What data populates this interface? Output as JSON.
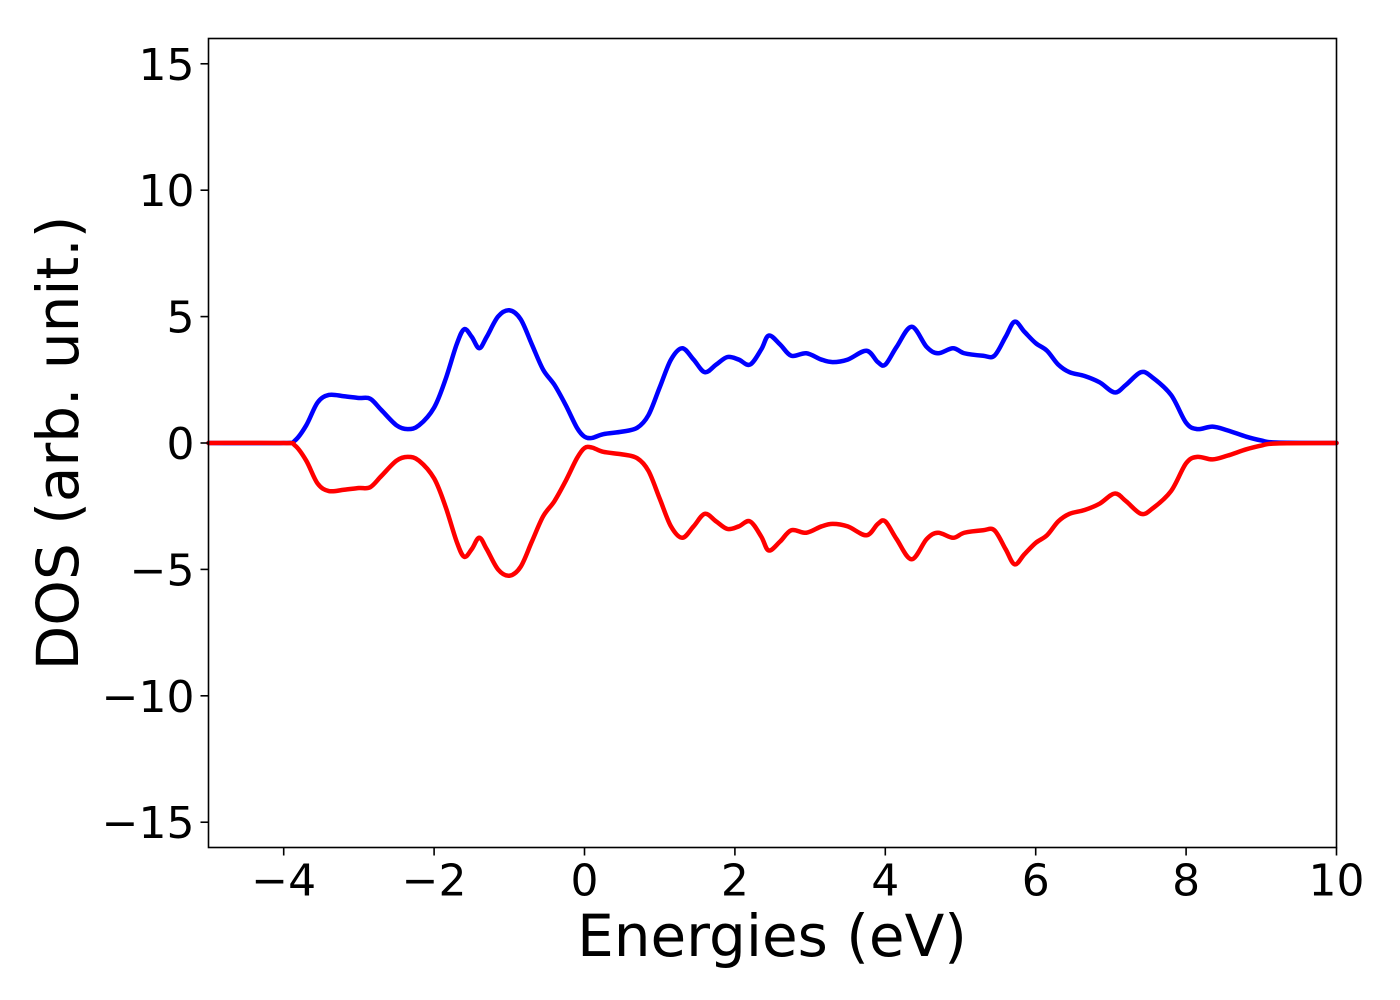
{
  "chart_data": {
    "type": "line",
    "title": "",
    "xlabel": "Energies (eV)",
    "ylabel": "DOS (arb. unit.)",
    "xlim": [
      -5,
      10
    ],
    "ylim": [
      -16,
      16
    ],
    "grid": false,
    "legend": "none",
    "xticks": [
      -4,
      -2,
      0,
      2,
      4,
      6,
      8,
      10
    ],
    "xtick_labels": [
      "−4",
      "−2",
      "0",
      "2",
      "4",
      "6",
      "8",
      "10"
    ],
    "yticks": [
      -15,
      -10,
      -5,
      0,
      5,
      10,
      15
    ],
    "ytick_labels": [
      "−15",
      "−10",
      "−5",
      "0",
      "5",
      "10",
      "15"
    ],
    "series": [
      {
        "color": "#0000ff",
        "points": [
          [
            -5,
            0
          ],
          [
            -4.0,
            0
          ],
          [
            -3.85,
            0.1
          ],
          [
            -3.7,
            0.7
          ],
          [
            -3.55,
            1.6
          ],
          [
            -3.4,
            1.9
          ],
          [
            -3.2,
            1.85
          ],
          [
            -3.0,
            1.78
          ],
          [
            -2.85,
            1.75
          ],
          [
            -2.7,
            1.3
          ],
          [
            -2.5,
            0.7
          ],
          [
            -2.35,
            0.55
          ],
          [
            -2.2,
            0.7
          ],
          [
            -2.0,
            1.4
          ],
          [
            -1.85,
            2.5
          ],
          [
            -1.7,
            3.9
          ],
          [
            -1.6,
            4.5
          ],
          [
            -1.5,
            4.2
          ],
          [
            -1.4,
            3.75
          ],
          [
            -1.3,
            4.2
          ],
          [
            -1.15,
            5.0
          ],
          [
            -1.0,
            5.25
          ],
          [
            -0.85,
            4.9
          ],
          [
            -0.7,
            3.9
          ],
          [
            -0.55,
            2.9
          ],
          [
            -0.4,
            2.3
          ],
          [
            -0.25,
            1.5
          ],
          [
            -0.1,
            0.6
          ],
          [
            0.0,
            0.25
          ],
          [
            0.1,
            0.2
          ],
          [
            0.25,
            0.35
          ],
          [
            0.5,
            0.45
          ],
          [
            0.7,
            0.6
          ],
          [
            0.85,
            1.1
          ],
          [
            1.0,
            2.2
          ],
          [
            1.15,
            3.3
          ],
          [
            1.3,
            3.75
          ],
          [
            1.45,
            3.3
          ],
          [
            1.6,
            2.8
          ],
          [
            1.75,
            3.1
          ],
          [
            1.9,
            3.4
          ],
          [
            2.05,
            3.3
          ],
          [
            2.2,
            3.1
          ],
          [
            2.35,
            3.7
          ],
          [
            2.45,
            4.25
          ],
          [
            2.6,
            3.9
          ],
          [
            2.75,
            3.45
          ],
          [
            2.95,
            3.55
          ],
          [
            3.15,
            3.3
          ],
          [
            3.3,
            3.2
          ],
          [
            3.5,
            3.3
          ],
          [
            3.75,
            3.65
          ],
          [
            3.9,
            3.2
          ],
          [
            4.0,
            3.1
          ],
          [
            4.15,
            3.8
          ],
          [
            4.35,
            4.6
          ],
          [
            4.55,
            3.8
          ],
          [
            4.7,
            3.55
          ],
          [
            4.9,
            3.75
          ],
          [
            5.05,
            3.55
          ],
          [
            5.3,
            3.45
          ],
          [
            5.45,
            3.45
          ],
          [
            5.6,
            4.2
          ],
          [
            5.72,
            4.8
          ],
          [
            5.85,
            4.4
          ],
          [
            6.0,
            3.95
          ],
          [
            6.15,
            3.65
          ],
          [
            6.3,
            3.1
          ],
          [
            6.45,
            2.8
          ],
          [
            6.65,
            2.65
          ],
          [
            6.85,
            2.4
          ],
          [
            7.05,
            2.0
          ],
          [
            7.2,
            2.3
          ],
          [
            7.4,
            2.8
          ],
          [
            7.55,
            2.6
          ],
          [
            7.8,
            1.9
          ],
          [
            8.0,
            0.8
          ],
          [
            8.15,
            0.55
          ],
          [
            8.35,
            0.65
          ],
          [
            8.55,
            0.5
          ],
          [
            8.8,
            0.25
          ],
          [
            9.0,
            0.1
          ],
          [
            9.2,
            0.02
          ],
          [
            10,
            0
          ]
        ]
      },
      {
        "color": "#ff0000",
        "points": [
          [
            -5,
            0
          ],
          [
            -4.0,
            0
          ],
          [
            -3.85,
            -0.1
          ],
          [
            -3.7,
            -0.7
          ],
          [
            -3.55,
            -1.6
          ],
          [
            -3.4,
            -1.9
          ],
          [
            -3.2,
            -1.85
          ],
          [
            -3.0,
            -1.78
          ],
          [
            -2.85,
            -1.75
          ],
          [
            -2.7,
            -1.3
          ],
          [
            -2.5,
            -0.7
          ],
          [
            -2.35,
            -0.55
          ],
          [
            -2.2,
            -0.7
          ],
          [
            -2.0,
            -1.4
          ],
          [
            -1.85,
            -2.5
          ],
          [
            -1.7,
            -3.9
          ],
          [
            -1.6,
            -4.5
          ],
          [
            -1.5,
            -4.2
          ],
          [
            -1.4,
            -3.75
          ],
          [
            -1.3,
            -4.2
          ],
          [
            -1.15,
            -5.0
          ],
          [
            -1.0,
            -5.25
          ],
          [
            -0.85,
            -4.9
          ],
          [
            -0.7,
            -3.9
          ],
          [
            -0.55,
            -2.9
          ],
          [
            -0.4,
            -2.3
          ],
          [
            -0.25,
            -1.5
          ],
          [
            -0.1,
            -0.6
          ],
          [
            0.0,
            -0.2
          ],
          [
            0.1,
            -0.18
          ],
          [
            0.25,
            -0.35
          ],
          [
            0.5,
            -0.45
          ],
          [
            0.7,
            -0.6
          ],
          [
            0.85,
            -1.1
          ],
          [
            1.0,
            -2.2
          ],
          [
            1.15,
            -3.3
          ],
          [
            1.3,
            -3.75
          ],
          [
            1.45,
            -3.3
          ],
          [
            1.6,
            -2.8
          ],
          [
            1.75,
            -3.1
          ],
          [
            1.9,
            -3.4
          ],
          [
            2.05,
            -3.3
          ],
          [
            2.2,
            -3.1
          ],
          [
            2.35,
            -3.7
          ],
          [
            2.45,
            -4.25
          ],
          [
            2.6,
            -3.9
          ],
          [
            2.75,
            -3.45
          ],
          [
            2.95,
            -3.55
          ],
          [
            3.15,
            -3.3
          ],
          [
            3.3,
            -3.2
          ],
          [
            3.5,
            -3.3
          ],
          [
            3.75,
            -3.65
          ],
          [
            3.9,
            -3.2
          ],
          [
            4.0,
            -3.1
          ],
          [
            4.15,
            -3.8
          ],
          [
            4.35,
            -4.6
          ],
          [
            4.55,
            -3.8
          ],
          [
            4.7,
            -3.55
          ],
          [
            4.9,
            -3.75
          ],
          [
            5.05,
            -3.55
          ],
          [
            5.3,
            -3.45
          ],
          [
            5.45,
            -3.45
          ],
          [
            5.6,
            -4.2
          ],
          [
            5.72,
            -4.8
          ],
          [
            5.85,
            -4.4
          ],
          [
            6.0,
            -3.95
          ],
          [
            6.15,
            -3.65
          ],
          [
            6.3,
            -3.1
          ],
          [
            6.45,
            -2.8
          ],
          [
            6.65,
            -2.65
          ],
          [
            6.85,
            -2.4
          ],
          [
            7.05,
            -2.0
          ],
          [
            7.2,
            -2.3
          ],
          [
            7.4,
            -2.8
          ],
          [
            7.55,
            -2.6
          ],
          [
            7.8,
            -1.9
          ],
          [
            8.0,
            -0.8
          ],
          [
            8.15,
            -0.55
          ],
          [
            8.35,
            -0.65
          ],
          [
            8.55,
            -0.5
          ],
          [
            8.8,
            -0.25
          ],
          [
            9.0,
            -0.1
          ],
          [
            9.2,
            -0.02
          ],
          [
            10,
            0
          ]
        ]
      }
    ]
  }
}
